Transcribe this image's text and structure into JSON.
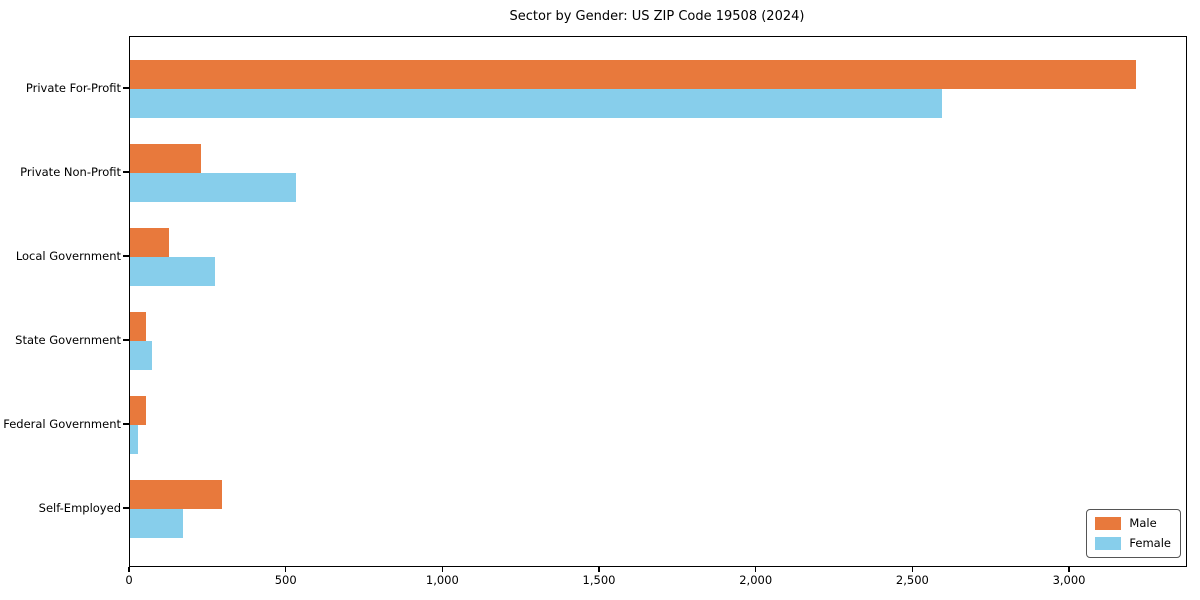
{
  "chart_data": {
    "type": "bar",
    "orientation": "horizontal",
    "title": "Sector by Gender: US ZIP Code 19508 (2024)",
    "categories": [
      "Private For-Profit",
      "Private Non-Profit",
      "Local Government",
      "State Government",
      "Federal Government",
      "Self-Employed"
    ],
    "series": [
      {
        "name": "Male",
        "color": "#e8793c",
        "values": [
          3210,
          225,
          125,
          50,
          50,
          295
        ]
      },
      {
        "name": "Female",
        "color": "#87ceeb",
        "values": [
          2590,
          530,
          270,
          70,
          25,
          170
        ]
      }
    ],
    "xlim": [
      0,
      3370
    ],
    "x_ticks": [
      0,
      500,
      1000,
      1500,
      2000,
      2500,
      3000
    ],
    "x_tick_labels": [
      "0",
      "500",
      "1,000",
      "1,500",
      "2,000",
      "2,500",
      "3,000"
    ],
    "ylabel": "",
    "xlabel": "",
    "grid": false,
    "legend_position": "lower right",
    "colors": {
      "male": "#e8793c",
      "female": "#87ceeb",
      "axis": "#000000",
      "background": "#ffffff"
    }
  }
}
